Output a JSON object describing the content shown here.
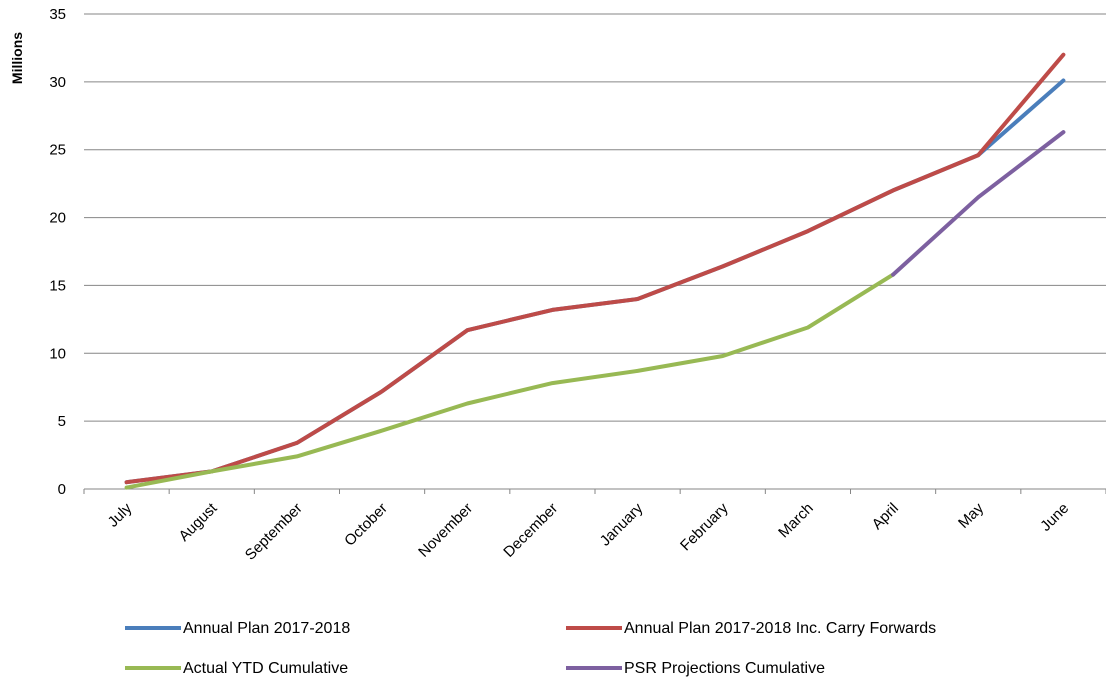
{
  "chart_data": {
    "type": "line",
    "ylabel": "Millions",
    "xlabel": "",
    "ylim": [
      0,
      35
    ],
    "yticks": [
      0,
      5,
      10,
      15,
      20,
      25,
      30,
      35
    ],
    "grid": true,
    "legend_position": "bottom",
    "categories": [
      "July",
      "August",
      "September",
      "October",
      "November",
      "December",
      "January",
      "February",
      "March",
      "April",
      "May",
      "June"
    ],
    "series": [
      {
        "name": "Annual Plan 2017-2018",
        "color": "#4a7ebb",
        "values": [
          0.5,
          1.3,
          3.4,
          7.2,
          11.7,
          13.2,
          14.0,
          16.4,
          19.0,
          22.0,
          24.6,
          30.1
        ]
      },
      {
        "name": "Annual Plan 2017-2018 Inc. Carry Forwards",
        "color": "#be4b48",
        "values": [
          0.5,
          1.3,
          3.4,
          7.2,
          11.7,
          13.2,
          14.0,
          16.4,
          19.0,
          22.0,
          24.6,
          32.0
        ]
      },
      {
        "name": "Actual YTD Cumulative",
        "color": "#98b954",
        "values": [
          0.1,
          1.3,
          2.4,
          4.3,
          6.3,
          7.8,
          8.7,
          9.8,
          11.9,
          15.8,
          null,
          null
        ]
      },
      {
        "name": "PSR Projections Cumulative",
        "color": "#7d60a0",
        "values": [
          null,
          null,
          null,
          null,
          null,
          null,
          null,
          null,
          null,
          15.8,
          21.5,
          26.3
        ]
      }
    ]
  }
}
